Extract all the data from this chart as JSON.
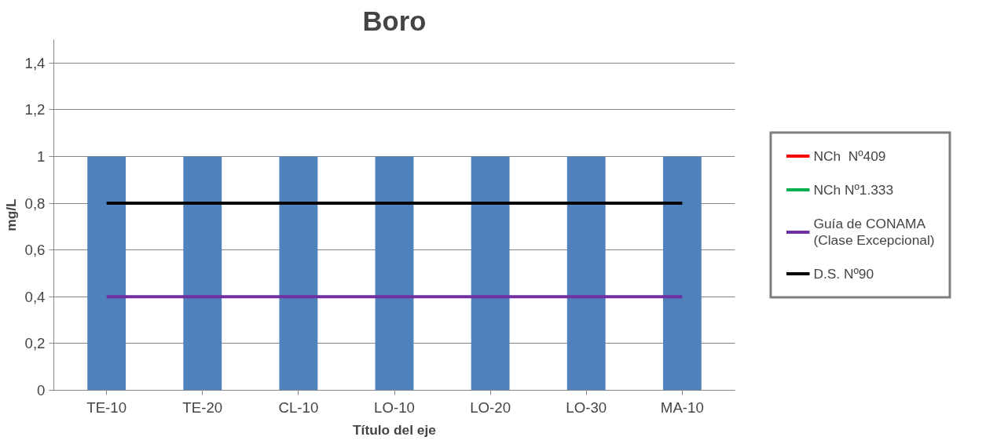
{
  "chart_data": {
    "type": "bar",
    "title": "Boro",
    "xlabel": "Título del eje",
    "ylabel": "mg/L",
    "categories": [
      "TE-10",
      "TE-20",
      "CL-10",
      "LO-10",
      "LO-20",
      "LO-30",
      "MA-10"
    ],
    "series": [
      {
        "color": "#4f81bd",
        "values": [
          1,
          1,
          1,
          1,
          1,
          1,
          1
        ]
      },
      {
        "type": "line",
        "name": "NCh  Nº409",
        "color": "#ff0000",
        "values": [
          null,
          null,
          null,
          null,
          null,
          null,
          null
        ]
      },
      {
        "type": "line",
        "name": "NCh Nº1.333",
        "color": "#00b050",
        "values": [
          null,
          null,
          null,
          null,
          null,
          null,
          null
        ]
      },
      {
        "type": "line",
        "name": "Guía de CONAMA\n(Clase Excepcional)",
        "color": "#7030a0",
        "values": [
          0.4,
          0.4,
          0.4,
          0.4,
          0.4,
          0.4,
          0.4
        ]
      },
      {
        "type": "line",
        "name": "D.S. Nº90",
        "color": "#000000",
        "values": [
          0.8,
          0.8,
          0.8,
          0.8,
          0.8,
          0.8,
          0.8
        ]
      }
    ],
    "ylim": [
      0,
      1.5
    ],
    "yticks": [
      0,
      {
        "value": 0.2,
        "label": "0,2"
      },
      {
        "value": 0.4,
        "label": "0,4"
      },
      {
        "value": 0.6,
        "label": "0,6"
      },
      {
        "value": 0.8,
        "label": "0,8"
      },
      1,
      {
        "value": 1.2,
        "label": "1,2"
      },
      {
        "value": 1.4,
        "label": "1,4"
      }
    ],
    "grid": "y",
    "legend": "right"
  }
}
